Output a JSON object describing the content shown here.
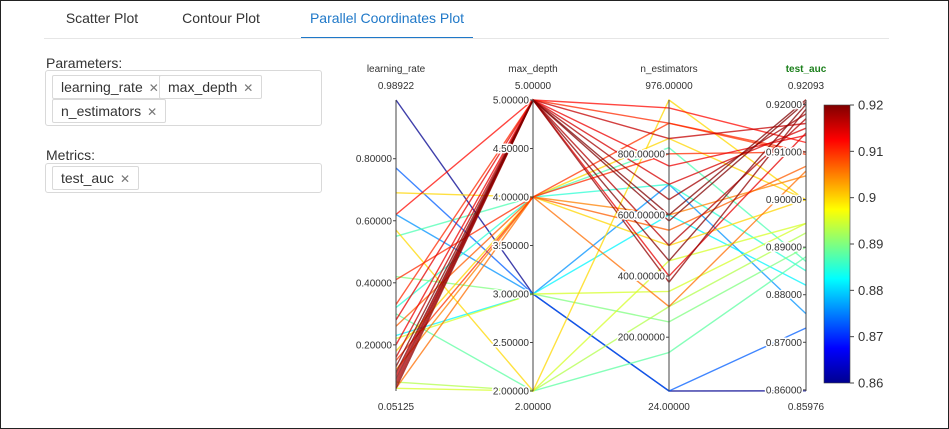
{
  "tabs": [
    {
      "label": "Scatter Plot",
      "active": false
    },
    {
      "label": "Contour Plot",
      "active": false
    },
    {
      "label": "Parallel Coordinates Plot",
      "active": true
    }
  ],
  "parameters": {
    "label": "Parameters:",
    "chips": [
      "learning_rate",
      "max_depth",
      "n_estimators"
    ]
  },
  "metrics": {
    "label": "Metrics:",
    "chips": [
      "test_auc"
    ]
  },
  "colors": {
    "accent": "#1f78c8",
    "metric_title": "#1a7f1a"
  },
  "chart_data": {
    "type": "parallel_coordinates",
    "axes": [
      {
        "name": "learning_rate",
        "min": 0.05125,
        "max": 0.98922,
        "min_label": "0.05125",
        "max_label": "0.98922",
        "ticks": [
          "0.20000",
          "0.40000",
          "0.60000",
          "0.80000"
        ],
        "tick_values": [
          0.2,
          0.4,
          0.6,
          0.8
        ]
      },
      {
        "name": "max_depth",
        "min": 2,
        "max": 5,
        "min_label": "2.00000",
        "max_label": "5.00000",
        "ticks": [
          "2.00000",
          "2.50000",
          "3.00000",
          "3.50000",
          "4.00000",
          "4.50000",
          "5.00000"
        ],
        "tick_values": [
          2,
          2.5,
          3,
          3.5,
          4,
          4.5,
          5
        ]
      },
      {
        "name": "n_estimators",
        "min": 24,
        "max": 976,
        "min_label": "24.00000",
        "max_label": "976.00000",
        "ticks": [
          "200.00000",
          "400.00000",
          "600.00000",
          "800.00000"
        ],
        "tick_values": [
          200,
          400,
          600,
          800
        ]
      },
      {
        "name": "test_auc",
        "min": 0.85976,
        "max": 0.92093,
        "min_label": "0.85976",
        "max_label": "0.92093",
        "ticks": [
          "0.86000",
          "0.87000",
          "0.88000",
          "0.89000",
          "0.90000",
          "0.91000",
          "0.92000"
        ],
        "tick_values": [
          0.86,
          0.87,
          0.88,
          0.89,
          0.9,
          0.91,
          0.92
        ],
        "highlight": true
      }
    ],
    "colorscale": {
      "min": 0.86,
      "max": 0.92,
      "ticks": [
        "0.86",
        "0.87",
        "0.88",
        "0.89",
        "0.9",
        "0.91",
        "0.92"
      ],
      "tick_values": [
        0.86,
        0.87,
        0.88,
        0.89,
        0.9,
        0.91,
        0.92
      ],
      "scheme": "jet"
    },
    "lines": [
      [
        0.98922,
        3.0,
        24,
        0.8598
      ],
      [
        0.23,
        3.0,
        600,
        0.882
      ],
      [
        0.77,
        3.0,
        24,
        0.873
      ],
      [
        0.62,
        3.0,
        700,
        0.876
      ],
      [
        0.3,
        2.0,
        150,
        0.888
      ],
      [
        0.08,
        2.0,
        300,
        0.893
      ],
      [
        0.06,
        2.0,
        450,
        0.895
      ],
      [
        0.57,
        2.0,
        976,
        0.8998
      ],
      [
        0.55,
        4.0,
        820,
        0.887
      ],
      [
        0.32,
        4.0,
        700,
        0.885
      ],
      [
        0.18,
        4.0,
        850,
        0.9
      ],
      [
        0.42,
        3.0,
        250,
        0.89
      ],
      [
        0.22,
        3.0,
        350,
        0.895
      ],
      [
        0.69,
        4.0,
        500,
        0.9
      ],
      [
        0.12,
        4.0,
        600,
        0.905
      ],
      [
        0.33,
        5.0,
        900,
        0.91
      ],
      [
        0.62,
        5.0,
        950,
        0.912
      ],
      [
        0.26,
        4.0,
        550,
        0.907
      ],
      [
        0.41,
        4.0,
        800,
        0.91
      ],
      [
        0.28,
        5.0,
        400,
        0.914
      ],
      [
        0.1,
        5.0,
        700,
        0.915
      ],
      [
        0.16,
        5.0,
        850,
        0.916
      ],
      [
        0.08,
        5.0,
        500,
        0.917
      ],
      [
        0.07,
        5.0,
        650,
        0.918
      ],
      [
        0.06,
        5.0,
        380,
        0.919
      ],
      [
        0.09,
        5.0,
        450,
        0.92
      ],
      [
        0.11,
        5.0,
        600,
        0.921
      ],
      [
        0.13,
        5.0,
        580,
        0.9205
      ],
      [
        0.06,
        4.0,
        300,
        0.906
      ],
      [
        0.2,
        5.0,
        760,
        0.9135
      ],
      [
        0.15,
        4.0,
        900,
        0.9095
      ]
    ]
  }
}
